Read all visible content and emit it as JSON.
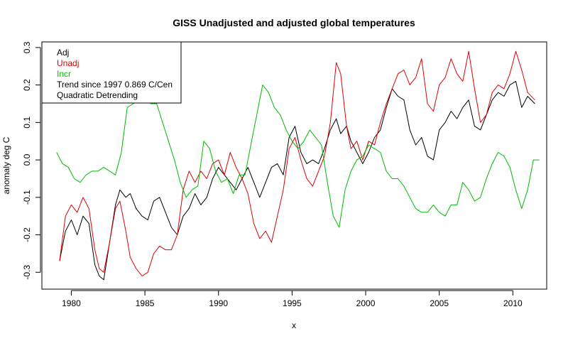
{
  "chart_data": {
    "type": "line",
    "title": "GISS Unadjusted and adjusted global temperatures",
    "xlabel": "x",
    "ylabel": "anomaly deg C",
    "xlim": [
      1978.0,
      2012.3
    ],
    "ylim": [
      -0.345,
      0.315
    ],
    "x_ticks": [
      1980,
      1985,
      1990,
      1995,
      2000,
      2005,
      2010
    ],
    "x_tick_labels": [
      "1980",
      "1985",
      "1990",
      "1995",
      "2000",
      "2005",
      "2010"
    ],
    "y_ticks": [
      -0.3,
      -0.2,
      -0.1,
      0.0,
      0.1,
      0.2,
      0.3
    ],
    "y_tick_labels": [
      "-0.3",
      "-0.2",
      "-0.1",
      "0.0",
      "0.1",
      "0.2",
      "0.3"
    ],
    "grid": false,
    "legend_position": "top-left",
    "legend": [
      {
        "label": "Adj",
        "color": "#000000"
      },
      {
        "label": "Unadj",
        "color": "#dd0000"
      },
      {
        "label": "Incr",
        "color": "#00bb00"
      },
      {
        "label": "Trend since 1997 0.869 C/Cen",
        "color": "#000000"
      },
      {
        "label": "Quadratic Detrending",
        "color": "#000000"
      }
    ],
    "series": [
      {
        "name": "Adj",
        "color": "#000000",
        "x": [
          1979.2,
          1979.6,
          1980.0,
          1980.4,
          1980.8,
          1981.2,
          1981.6,
          1981.9,
          1982.2,
          1982.6,
          1983.0,
          1983.3,
          1983.7,
          1984.0,
          1984.4,
          1984.8,
          1985.2,
          1985.6,
          1986.0,
          1986.4,
          1986.8,
          1987.2,
          1987.6,
          1988.0,
          1988.4,
          1988.8,
          1989.2,
          1989.6,
          1990.0,
          1990.4,
          1990.8,
          1991.2,
          1991.6,
          1992.0,
          1992.4,
          1992.8,
          1993.2,
          1993.6,
          1994.0,
          1994.4,
          1994.8,
          1995.2,
          1995.6,
          1996.0,
          1996.4,
          1996.8,
          1997.2,
          1997.6,
          1998.0,
          1998.3,
          1998.7,
          1999.0,
          1999.4,
          1999.8,
          2000.2,
          2000.6,
          2001.0,
          2001.4,
          2001.8,
          2002.2,
          2002.6,
          2003.0,
          2003.4,
          2003.8,
          2004.2,
          2004.6,
          2005.0,
          2005.4,
          2005.8,
          2006.2,
          2006.6,
          2007.0,
          2007.4,
          2007.8,
          2008.2,
          2008.6,
          2009.0,
          2009.4,
          2009.8,
          2010.2,
          2010.6,
          2011.0,
          2011.5
        ],
        "values": [
          -0.27,
          -0.19,
          -0.16,
          -0.2,
          -0.15,
          -0.17,
          -0.28,
          -0.31,
          -0.32,
          -0.22,
          -0.12,
          -0.08,
          -0.1,
          -0.09,
          -0.13,
          -0.15,
          -0.16,
          -0.11,
          -0.1,
          -0.14,
          -0.18,
          -0.2,
          -0.15,
          -0.13,
          -0.09,
          -0.12,
          -0.1,
          -0.05,
          -0.02,
          -0.04,
          -0.06,
          -0.08,
          -0.05,
          -0.02,
          -0.06,
          -0.1,
          -0.06,
          -0.02,
          -0.01,
          -0.04,
          0.06,
          0.09,
          0.02,
          -0.01,
          0.0,
          -0.01,
          0.03,
          0.08,
          0.11,
          0.07,
          0.09,
          0.05,
          0.02,
          -0.01,
          0.02,
          0.06,
          0.08,
          0.14,
          0.19,
          0.17,
          0.16,
          0.08,
          0.04,
          0.06,
          0.01,
          0.0,
          0.08,
          0.1,
          0.13,
          0.11,
          0.14,
          0.16,
          0.09,
          0.08,
          0.12,
          0.16,
          0.18,
          0.17,
          0.2,
          0.21,
          0.14,
          0.17,
          0.15
        ]
      },
      {
        "name": "Unadj",
        "color": "#dd0000",
        "x": [
          1979.2,
          1979.6,
          1980.0,
          1980.4,
          1980.8,
          1981.2,
          1981.6,
          1981.9,
          1982.2,
          1982.6,
          1983.0,
          1983.3,
          1983.7,
          1984.0,
          1984.4,
          1984.8,
          1985.2,
          1985.6,
          1986.0,
          1986.4,
          1986.8,
          1987.2,
          1987.6,
          1988.0,
          1988.4,
          1988.8,
          1989.2,
          1989.6,
          1990.0,
          1990.4,
          1990.8,
          1991.2,
          1991.6,
          1992.0,
          1992.4,
          1992.8,
          1993.2,
          1993.6,
          1994.0,
          1994.4,
          1994.8,
          1995.2,
          1995.6,
          1996.0,
          1996.4,
          1996.8,
          1997.2,
          1997.6,
          1998.0,
          1998.3,
          1998.7,
          1999.0,
          1999.4,
          1999.8,
          2000.2,
          2000.6,
          2001.0,
          2001.4,
          2001.8,
          2002.2,
          2002.6,
          2003.0,
          2003.4,
          2003.8,
          2004.2,
          2004.6,
          2005.0,
          2005.4,
          2005.8,
          2006.2,
          2006.6,
          2007.0,
          2007.4,
          2007.8,
          2008.2,
          2008.6,
          2009.0,
          2009.4,
          2009.8,
          2010.2,
          2010.6,
          2011.0,
          2011.5
        ],
        "values": [
          -0.27,
          -0.15,
          -0.12,
          -0.14,
          -0.1,
          -0.13,
          -0.24,
          -0.29,
          -0.3,
          -0.22,
          -0.13,
          -0.11,
          -0.19,
          -0.26,
          -0.29,
          -0.31,
          -0.3,
          -0.25,
          -0.23,
          -0.24,
          -0.24,
          -0.2,
          -0.08,
          -0.03,
          -0.06,
          -0.03,
          -0.05,
          -0.01,
          0.0,
          -0.04,
          0.02,
          -0.02,
          -0.05,
          -0.09,
          -0.17,
          -0.21,
          -0.19,
          -0.22,
          -0.15,
          -0.08,
          0.03,
          0.06,
          0.0,
          -0.05,
          -0.07,
          -0.03,
          0.01,
          0.1,
          0.26,
          0.23,
          0.09,
          0.03,
          0.05,
          0.0,
          0.05,
          0.04,
          0.1,
          0.15,
          0.19,
          0.23,
          0.24,
          0.2,
          0.22,
          0.27,
          0.15,
          0.13,
          0.2,
          0.22,
          0.27,
          0.23,
          0.21,
          0.29,
          0.19,
          0.1,
          0.12,
          0.18,
          0.2,
          0.19,
          0.23,
          0.29,
          0.24,
          0.18,
          0.16
        ]
      },
      {
        "name": "Incr",
        "color": "#00bb00",
        "x": [
          1979.0,
          1979.4,
          1979.8,
          1980.2,
          1980.6,
          1981.0,
          1981.4,
          1981.8,
          1982.2,
          1982.6,
          1983.0,
          1983.4,
          1983.8,
          1984.2,
          1984.6,
          1985.0,
          1985.4,
          1985.8,
          1986.2,
          1986.6,
          1987.0,
          1987.4,
          1987.8,
          1988.2,
          1988.6,
          1989.0,
          1989.4,
          1989.8,
          1990.2,
          1990.6,
          1991.0,
          1991.4,
          1991.8,
          1992.2,
          1992.6,
          1993.0,
          1993.4,
          1993.8,
          1994.2,
          1994.6,
          1995.0,
          1995.4,
          1995.8,
          1996.2,
          1996.6,
          1997.0,
          1997.4,
          1997.8,
          1998.2,
          1998.6,
          1999.0,
          1999.4,
          1999.8,
          2000.2,
          2000.6,
          2001.0,
          2001.4,
          2001.8,
          2002.2,
          2002.6,
          2003.0,
          2003.4,
          2003.8,
          2004.2,
          2004.6,
          2005.0,
          2005.4,
          2005.8,
          2006.2,
          2006.6,
          2007.0,
          2007.4,
          2007.8,
          2008.2,
          2008.6,
          2009.0,
          2009.4,
          2009.8,
          2010.2,
          2010.6,
          2011.0,
          2011.4,
          2011.8
        ],
        "values": [
          0.02,
          -0.01,
          -0.02,
          -0.05,
          -0.06,
          -0.04,
          -0.03,
          -0.03,
          -0.02,
          -0.03,
          -0.04,
          0.02,
          0.14,
          0.15,
          0.16,
          0.17,
          0.15,
          0.15,
          0.1,
          0.05,
          0.0,
          -0.06,
          -0.1,
          -0.08,
          -0.07,
          0.05,
          0.03,
          -0.03,
          -0.06,
          -0.05,
          -0.09,
          -0.04,
          -0.04,
          0.04,
          0.12,
          0.2,
          0.18,
          0.14,
          0.12,
          0.08,
          0.05,
          0.03,
          0.05,
          0.08,
          0.06,
          0.04,
          -0.06,
          -0.15,
          -0.18,
          -0.08,
          -0.03,
          0.0,
          0.01,
          0.04,
          0.03,
          0.02,
          -0.03,
          -0.05,
          -0.05,
          -0.07,
          -0.1,
          -0.13,
          -0.14,
          -0.14,
          -0.12,
          -0.14,
          -0.15,
          -0.12,
          -0.12,
          -0.06,
          -0.08,
          -0.11,
          -0.1,
          -0.05,
          -0.01,
          0.02,
          0.01,
          -0.02,
          -0.08,
          -0.13,
          -0.08,
          0.0,
          0.0
        ]
      }
    ]
  }
}
